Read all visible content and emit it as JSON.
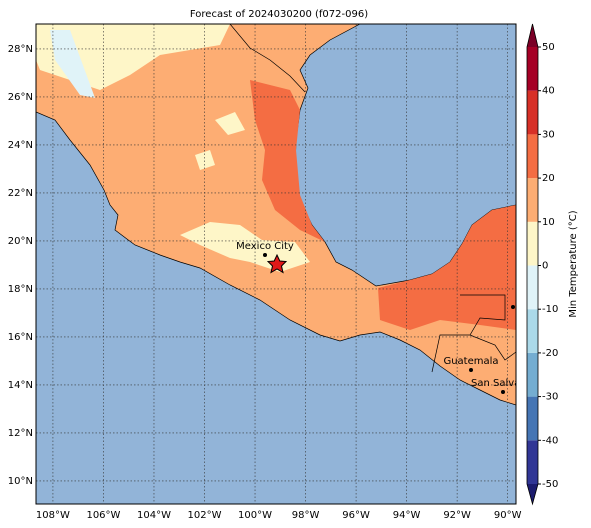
{
  "title": "Forecast of 2024030200 (f072-096)",
  "map": {
    "lonlim": [
      -108.67,
      -89.67
    ],
    "latlim": [
      9.04,
      29.04
    ],
    "lon_ticks": [
      {
        "value": -108,
        "label": "108°W"
      },
      {
        "value": -106,
        "label": "106°W"
      },
      {
        "value": -104,
        "label": "104°W"
      },
      {
        "value": -102,
        "label": "102°W"
      },
      {
        "value": -100,
        "label": "100°W"
      },
      {
        "value": -98,
        "label": "98°W"
      },
      {
        "value": -96,
        "label": "96°W"
      },
      {
        "value": -94,
        "label": "94°W"
      },
      {
        "value": -92,
        "label": "92°W"
      },
      {
        "value": -90,
        "label": "90°W"
      }
    ],
    "lat_ticks": [
      {
        "value": 10,
        "label": "10°N"
      },
      {
        "value": 12,
        "label": "12°N"
      },
      {
        "value": 14,
        "label": "14°N"
      },
      {
        "value": 16,
        "label": "16°N"
      },
      {
        "value": 18,
        "label": "18°N"
      },
      {
        "value": 20,
        "label": "20°N"
      },
      {
        "value": 22,
        "label": "22°N"
      },
      {
        "value": 24,
        "label": "24°N"
      },
      {
        "value": 26,
        "label": "26°N"
      },
      {
        "value": 28,
        "label": "28°N"
      }
    ],
    "cities": [
      "Mexico City",
      "Guatemala",
      "San Salvador"
    ]
  },
  "colorbar": {
    "label": "Min Temperature (°C)",
    "lim": [
      -50,
      50
    ],
    "ticks": [
      -50,
      -40,
      -30,
      -20,
      -10,
      0,
      10,
      20,
      30,
      40,
      50
    ],
    "colors": [
      "#313695",
      "#4575b4",
      "#74add1",
      "#abd9e9",
      "#e0f3f8",
      "#fef6c8",
      "#fdad73",
      "#f46d43",
      "#d73027",
      "#a50026"
    ],
    "under_color": "#1c1c6e",
    "over_color": "#7a0026"
  }
}
